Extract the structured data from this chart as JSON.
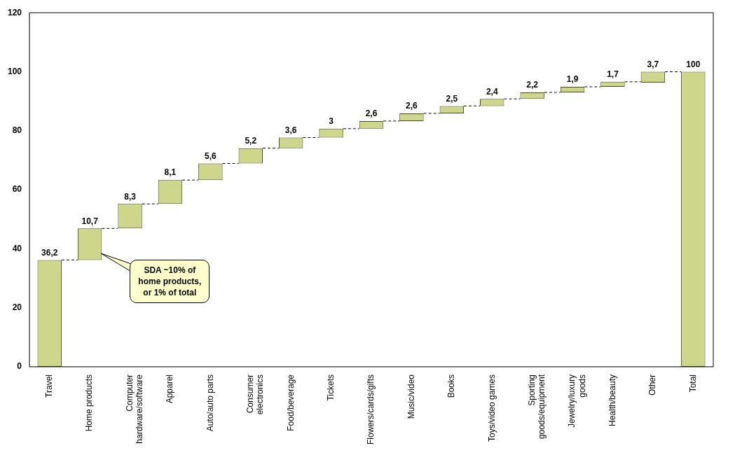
{
  "chart_data": {
    "type": "bar",
    "categories": [
      "Travel",
      "Home products",
      "Computer hardware/software",
      "Apparel",
      "Auto/auto parts",
      "Consumer electronics",
      "Food/beverage",
      "Tickets",
      "Flowers/cards/gifts",
      "Music/video",
      "Books",
      "Toys/video games",
      "Sporting goods/equipment",
      "Jewelry/luxury goods",
      "Health/beauty",
      "Other",
      "Total"
    ],
    "values": [
      36.2,
      10.7,
      8.3,
      8.1,
      5.6,
      5.2,
      3.6,
      3,
      2.6,
      2.6,
      2.5,
      2.4,
      2.2,
      1.9,
      1.7,
      3.7,
      100
    ],
    "base": [
      0,
      36.2,
      46.9,
      55.2,
      63.3,
      68.9,
      74.1,
      77.7,
      80.7,
      83.3,
      85.9,
      88.4,
      90.8,
      93,
      94.9,
      96.3,
      0
    ],
    "value_labels": [
      "36,2",
      "10,7",
      "8,3",
      "8,1",
      "5,6",
      "5,2",
      "3,6",
      "3",
      "2,6",
      "2,6",
      "2,5",
      "2,4",
      "2,2",
      "1,9",
      "1,7",
      "3,7",
      "100"
    ],
    "color": "#cdd68a",
    "ylim": [
      0,
      120
    ],
    "yticks": [
      0,
      20,
      40,
      60,
      80,
      100,
      120
    ],
    "grid": false,
    "legend": false,
    "annotations": [
      "SDA ~10% of home products, or 1% of total"
    ]
  }
}
